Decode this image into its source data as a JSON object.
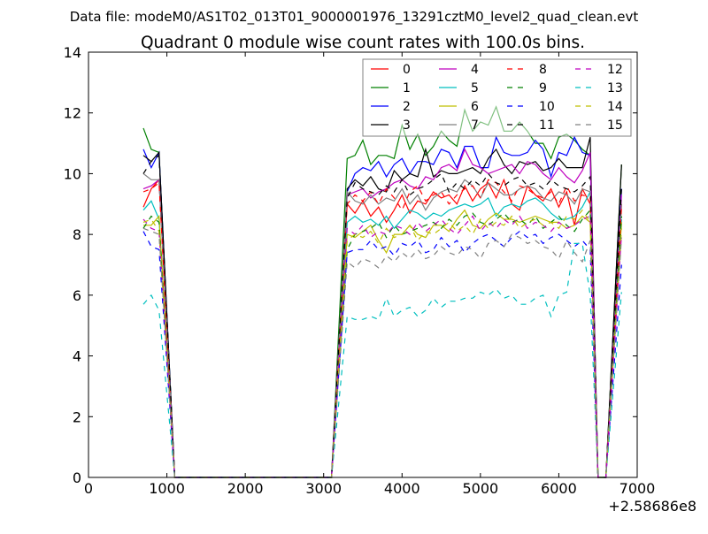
{
  "chart_data": {
    "type": "line",
    "suptitle": "Data file: modeM0/AS1T02_013T01_9000001976_13291cztM0_level2_quad_clean.evt",
    "title": "Quadrant 0 module wise count rates with 100.0s bins.",
    "xlabel": "",
    "ylabel": "",
    "xlim": [
      0,
      7000
    ],
    "ylim": [
      0,
      14
    ],
    "x_offset_label": "+2.58686e8",
    "xticks": [
      "0",
      "1000",
      "2000",
      "3000",
      "4000",
      "5000",
      "6000",
      "7000"
    ],
    "yticks": [
      "0",
      "2",
      "4",
      "6",
      "8",
      "10",
      "12",
      "14"
    ],
    "legend_position": "top-right",
    "legend_columns": 4,
    "grid": false,
    "x": [
      700,
      800,
      900,
      1100,
      2000,
      3100,
      3300,
      3400,
      3500,
      3600,
      3700,
      3800,
      3900,
      4000,
      4100,
      4200,
      4300,
      4400,
      4500,
      4600,
      4700,
      4800,
      4900,
      5000,
      5100,
      5200,
      5300,
      5400,
      5500,
      5600,
      5700,
      5800,
      5900,
      6000,
      6100,
      6200,
      6300,
      6400,
      6500,
      6600,
      6800
    ],
    "series": [
      {
        "name": "0",
        "color": "#ff0000",
        "dashed": false,
        "values": [
          8.9,
          9.5,
          9.8,
          0,
          0,
          0,
          9.0,
          8.7,
          9.1,
          8.6,
          8.9,
          8.4,
          8.8,
          9.3,
          8.7,
          9.1,
          9.0,
          9.4,
          9.2,
          9.3,
          9.0,
          9.6,
          9.1,
          9.5,
          9.7,
          9.2,
          9.8,
          9.0,
          8.8,
          9.6,
          9.3,
          9.1,
          9.5,
          8.9,
          9.4,
          8.3,
          9.5,
          9.0,
          0,
          0,
          9.0
        ]
      },
      {
        "name": "1",
        "color": "#008000",
        "dashed": false,
        "values": [
          11.5,
          10.8,
          10.7,
          0,
          0,
          0,
          10.5,
          10.6,
          11.1,
          10.3,
          10.6,
          10.6,
          10.5,
          11.6,
          10.8,
          11.3,
          10.6,
          10.9,
          11.4,
          11.1,
          10.9,
          12.1,
          11.4,
          11.7,
          11.6,
          12.2,
          11.4,
          11.4,
          11.7,
          11.4,
          11.0,
          11.0,
          10.5,
          11.2,
          11.3,
          11.1,
          10.8,
          10.6,
          0,
          0,
          10.3
        ]
      },
      {
        "name": "2",
        "color": "#0000ff",
        "dashed": false,
        "values": [
          10.8,
          10.2,
          10.7,
          0,
          0,
          0,
          9.4,
          10.0,
          10.2,
          10.1,
          10.4,
          9.9,
          10.3,
          10.5,
          10.0,
          10.4,
          10.4,
          10.3,
          10.8,
          10.7,
          10.2,
          10.9,
          10.9,
          10.2,
          10.2,
          11.2,
          10.7,
          10.6,
          10.6,
          10.7,
          11.1,
          10.8,
          9.9,
          10.7,
          10.6,
          11.2,
          10.7,
          10.6,
          0,
          0,
          9.5
        ]
      },
      {
        "name": "3",
        "color": "#000000",
        "dashed": false,
        "values": [
          10.6,
          10.4,
          10.7,
          0,
          0,
          0,
          9.5,
          9.8,
          9.6,
          9.9,
          9.5,
          9.4,
          10.1,
          9.8,
          10.0,
          9.9,
          10.8,
          9.9,
          10.1,
          10.0,
          10.0,
          10.1,
          10.2,
          10.0,
          10.5,
          10.8,
          10.3,
          10.0,
          10.4,
          10.3,
          10.4,
          10.1,
          10.2,
          10.5,
          10.2,
          10.2,
          10.2,
          11.2,
          0,
          0,
          10.3
        ]
      },
      {
        "name": "4",
        "color": "#bf00bf",
        "dashed": false,
        "values": [
          9.5,
          9.6,
          9.8,
          0,
          0,
          0,
          9.3,
          9.4,
          9.5,
          9.2,
          9.4,
          9.5,
          9.7,
          9.8,
          9.6,
          9.5,
          9.9,
          9.8,
          10.2,
          10.3,
          10.1,
          10.8,
          10.3,
          10.2,
          10.0,
          10.1,
          10.2,
          10.3,
          10.0,
          10.4,
          10.3,
          10.0,
          9.8,
          10.2,
          9.9,
          9.7,
          10.1,
          10.7,
          0,
          0,
          9.3
        ]
      },
      {
        "name": "5",
        "color": "#00bfbf",
        "dashed": false,
        "values": [
          8.8,
          9.1,
          8.5,
          0,
          0,
          0,
          8.4,
          8.6,
          8.4,
          8.5,
          8.3,
          8.6,
          8.2,
          8.5,
          8.8,
          8.7,
          8.5,
          8.7,
          8.6,
          8.8,
          8.9,
          9.0,
          8.9,
          9.0,
          9.2,
          8.6,
          8.9,
          9.0,
          8.9,
          9.1,
          9.2,
          9.0,
          8.7,
          8.5,
          8.5,
          8.6,
          8.9,
          9.4,
          0,
          0,
          8.5
        ]
      },
      {
        "name": "6",
        "color": "#bfbf00",
        "dashed": false,
        "values": [
          8.3,
          8.3,
          8.6,
          0,
          0,
          0,
          8.0,
          7.9,
          8.1,
          8.3,
          7.8,
          7.4,
          8.0,
          8.0,
          8.3,
          8.0,
          7.9,
          8.3,
          8.3,
          8.1,
          8.5,
          8.8,
          8.3,
          8.2,
          8.5,
          8.7,
          8.5,
          8.5,
          8.4,
          8.5,
          8.6,
          8.5,
          8.4,
          8.4,
          8.2,
          8.3,
          8.6,
          8.4,
          0,
          0,
          8.4
        ]
      },
      {
        "name": "7",
        "color": "#808080",
        "dashed": false,
        "values": [
          10.0,
          9.8,
          9.8,
          0,
          0,
          0,
          9.4,
          9.1,
          9.0,
          9.3,
          9.0,
          9.2,
          9.1,
          9.5,
          9.0,
          9.3,
          8.8,
          9.2,
          9.4,
          9.5,
          9.4,
          9.8,
          9.6,
          9.2,
          9.7,
          9.5,
          9.3,
          9.3,
          9.5,
          9.6,
          9.5,
          9.2,
          9.1,
          9.4,
          9.3,
          9.0,
          9.5,
          9.4,
          0,
          0,
          9.0
        ]
      },
      {
        "name": "8",
        "color": "#ff0000",
        "dashed": true,
        "values": [
          9.4,
          9.5,
          9.7,
          0,
          0,
          0,
          9.0,
          9.3,
          9.1,
          9.4,
          9.0,
          9.5,
          9.2,
          8.8,
          9.4,
          9.6,
          9.1,
          9.3,
          9.4,
          9.0,
          9.3,
          9.5,
          9.6,
          9.2,
          9.8,
          9.7,
          9.4,
          9.1,
          9.6,
          9.5,
          9.3,
          9.2,
          9.4,
          9.0,
          9.6,
          9.1,
          9.3,
          9.2,
          0,
          0,
          8.9
        ]
      },
      {
        "name": "9",
        "color": "#008000",
        "dashed": true,
        "values": [
          8.2,
          8.6,
          8.4,
          0,
          0,
          0,
          7.5,
          8.0,
          8.1,
          8.2,
          8.4,
          7.9,
          8.3,
          8.0,
          8.1,
          8.2,
          8.3,
          8.4,
          8.2,
          8.5,
          8.3,
          8.6,
          8.7,
          8.4,
          8.3,
          8.5,
          8.7,
          8.4,
          8.5,
          8.3,
          8.6,
          8.2,
          8.4,
          8.6,
          8.3,
          8.1,
          8.5,
          8.8,
          0,
          0,
          8.6
        ]
      },
      {
        "name": "10",
        "color": "#0000ff",
        "dashed": true,
        "values": [
          8.1,
          7.6,
          7.5,
          0,
          0,
          0,
          7.4,
          7.5,
          7.5,
          7.8,
          7.5,
          7.6,
          7.3,
          7.7,
          7.6,
          7.8,
          7.4,
          7.5,
          7.9,
          7.6,
          7.8,
          7.4,
          7.7,
          7.9,
          8.0,
          7.8,
          7.6,
          7.9,
          8.1,
          7.9,
          8.0,
          7.7,
          7.9,
          8.0,
          7.8,
          7.6,
          7.8,
          7.5,
          0,
          0,
          7.0
        ]
      },
      {
        "name": "11",
        "color": "#000000",
        "dashed": true,
        "values": [
          10.0,
          10.4,
          10.6,
          0,
          0,
          0,
          9.2,
          9.7,
          9.5,
          9.4,
          9.3,
          9.6,
          9.4,
          9.8,
          9.3,
          9.5,
          9.6,
          9.8,
          10.0,
          9.4,
          9.7,
          9.5,
          9.8,
          9.6,
          10.0,
          9.7,
          9.6,
          9.8,
          9.9,
          9.6,
          9.7,
          9.5,
          9.8,
          9.6,
          9.5,
          9.4,
          9.6,
          9.9,
          0,
          0,
          9.5
        ]
      },
      {
        "name": "12",
        "color": "#bf00bf",
        "dashed": true,
        "values": [
          8.5,
          8.2,
          8.1,
          0,
          0,
          0,
          8.2,
          8.0,
          8.3,
          7.9,
          8.1,
          8.0,
          8.3,
          8.2,
          8.0,
          8.4,
          8.1,
          8.3,
          8.5,
          8.2,
          8.0,
          8.3,
          8.6,
          8.1,
          8.4,
          8.2,
          8.5,
          8.3,
          8.6,
          8.2,
          8.4,
          8.3,
          8.1,
          8.4,
          8.2,
          8.3,
          8.5,
          8.6,
          0,
          0,
          8.0
        ]
      },
      {
        "name": "13",
        "color": "#00bfbf",
        "dashed": true,
        "values": [
          5.7,
          6.0,
          5.5,
          0,
          0,
          0,
          5.3,
          5.2,
          5.2,
          5.3,
          5.2,
          5.9,
          5.3,
          5.5,
          5.6,
          5.3,
          5.5,
          5.9,
          5.6,
          5.8,
          5.8,
          5.9,
          5.9,
          6.1,
          6.0,
          6.2,
          5.9,
          6.0,
          5.7,
          5.7,
          5.9,
          6.0,
          5.3,
          6.0,
          6.1,
          7.7,
          7.7,
          6.0,
          0,
          0,
          6.1
        ]
      },
      {
        "name": "14",
        "color": "#bfbf00",
        "dashed": true,
        "values": [
          8.4,
          8.5,
          8.1,
          0,
          0,
          0,
          7.8,
          8.0,
          7.9,
          8.1,
          7.7,
          8.2,
          7.9,
          8.0,
          8.3,
          7.8,
          8.1,
          8.0,
          8.2,
          8.4,
          8.1,
          8.3,
          8.0,
          8.5,
          8.2,
          8.4,
          8.3,
          8.6,
          8.2,
          8.4,
          8.5,
          8.3,
          8.4,
          8.2,
          8.6,
          8.5,
          8.8,
          8.4,
          0,
          0,
          8.2
        ]
      },
      {
        "name": "15",
        "color": "#808080",
        "dashed": true,
        "values": [
          8.2,
          8.1,
          8.0,
          0,
          0,
          0,
          7.1,
          6.9,
          7.2,
          7.1,
          6.9,
          7.3,
          7.1,
          7.4,
          7.2,
          7.5,
          7.2,
          7.3,
          7.6,
          7.4,
          7.3,
          7.6,
          7.5,
          7.2,
          7.7,
          7.8,
          7.6,
          8.0,
          7.9,
          7.7,
          7.8,
          7.6,
          7.5,
          7.2,
          7.8,
          7.4,
          7.1,
          7.8,
          0,
          0,
          7.9
        ]
      }
    ]
  }
}
